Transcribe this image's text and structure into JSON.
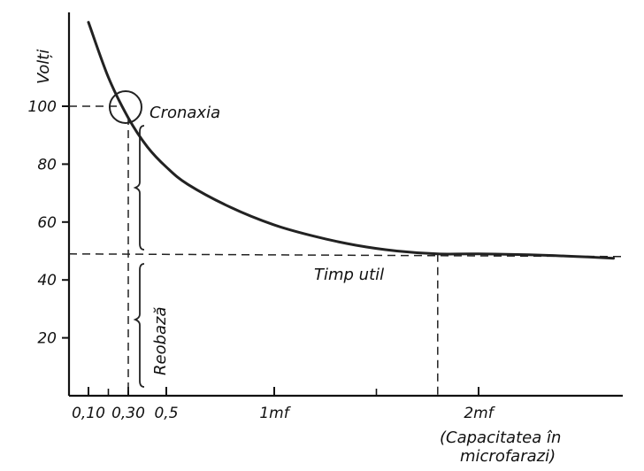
{
  "chart_data": {
    "type": "line",
    "ylabel": "Volți",
    "xlabel": "(Capacitatea în microfarazi)",
    "xlabel_lines": [
      "(Capacitatea în",
      "microfarazi)"
    ],
    "y_ticks": [
      {
        "value": 20,
        "label": "20"
      },
      {
        "value": 40,
        "label": "40"
      },
      {
        "value": 60,
        "label": "60"
      },
      {
        "value": 80,
        "label": "80"
      },
      {
        "value": 100,
        "label": "100"
      }
    ],
    "x_ticks": [
      {
        "value": 0.1,
        "label": "0,10"
      },
      {
        "value": 0.3,
        "label": "0,30"
      },
      {
        "value": 0.5,
        "label": "0,5"
      },
      {
        "value": 1.0,
        "label": "1mf"
      },
      {
        "value": 2.0,
        "label": "2mf"
      }
    ],
    "series": [
      {
        "x": [
          0.1,
          0.2,
          0.3,
          0.4,
          0.5,
          0.6,
          0.8,
          1.0,
          1.2,
          1.4,
          1.6,
          1.8,
          2.0,
          2.4,
          2.8
        ],
        "y": [
          129,
          110,
          96,
          86,
          79,
          73,
          65,
          59,
          55,
          52,
          50,
          49,
          49,
          48.5,
          47.5
        ]
      }
    ],
    "reference_lines": {
      "rheobase_voltage": 49,
      "double_rheobase_voltage": 100,
      "chronaxie_capacity": 0.3,
      "useful_time_capacity": 1.8
    },
    "annotations": {
      "chronaxie": "Cronaxia",
      "useful_time": "Timp util",
      "rheobase": "Reobază"
    },
    "xlim": [
      0,
      2.85
    ],
    "ylim": [
      0,
      135
    ],
    "grid": false
  }
}
